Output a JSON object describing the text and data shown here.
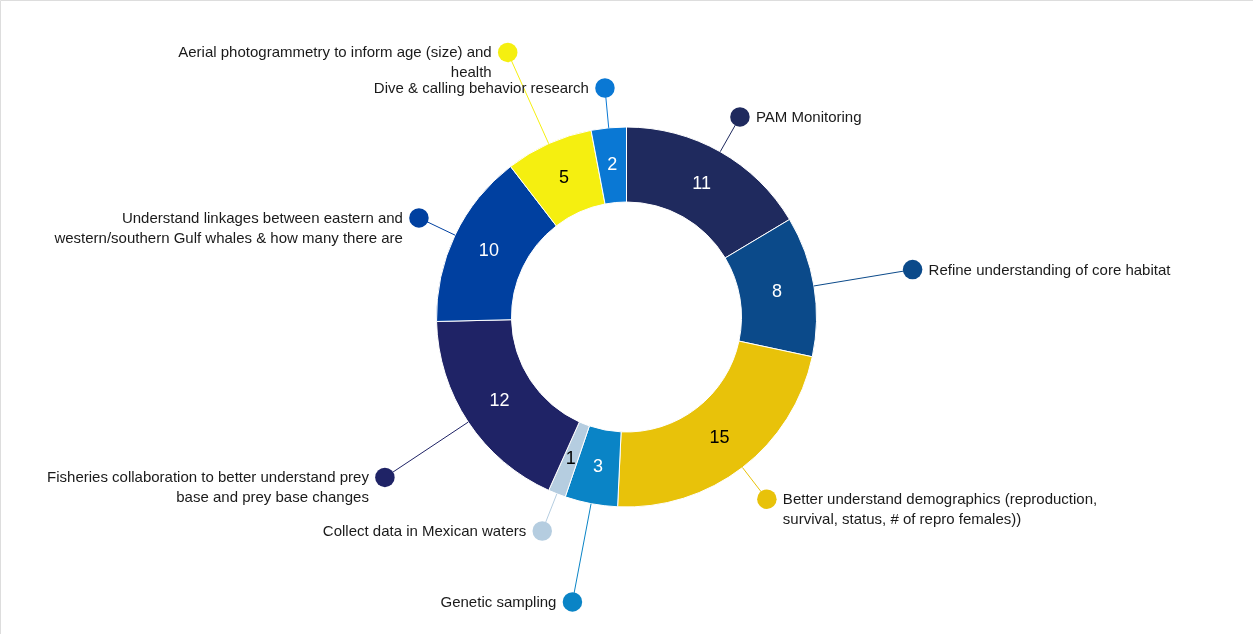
{
  "chart_data": {
    "type": "donut",
    "categories": [
      "PAM Monitoring",
      "Refine understanding of core habitat",
      "Better understand demographics (reproduction,\nsurvival, status, # of repro females))",
      "Genetic sampling",
      "Collect data in Mexican waters",
      "Fisheries collaboration to better understand prey\nbase and prey base changes",
      "Understand linkages between eastern and\nwestern/southern Gulf whales & how many there are",
      "Aerial photogrammetry to inform age (size) and\nhealth",
      "Dive & calling behavior research"
    ],
    "values": [
      11,
      8,
      15,
      3,
      1,
      12,
      10,
      5,
      2
    ],
    "colors": [
      "#1f2a5e",
      "#0b4a8a",
      "#e8c20a",
      "#0a84c6",
      "#b5cde0",
      "#1f2366",
      "#0040a0",
      "#f5ef10",
      "#0a78d4"
    ],
    "data_labels": true,
    "legend": "left"
  }
}
